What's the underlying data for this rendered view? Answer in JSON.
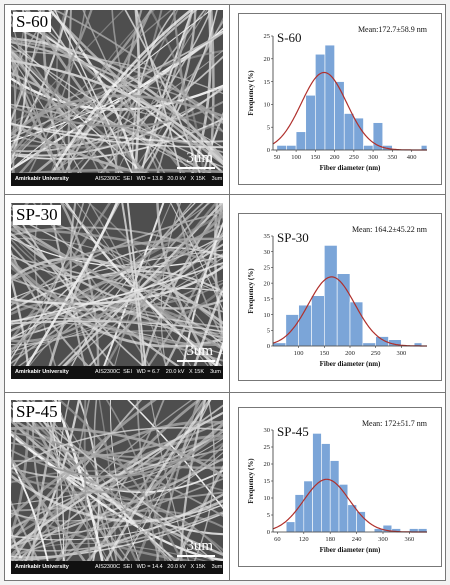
{
  "panels": [
    {
      "sem": {
        "label": "S-60",
        "institution": "Amirkabir University",
        "params": "AIS2300C  SEI   WD = 13.8   20.0 kV   X 15K    3um",
        "scale_bar": "3um"
      }
    },
    {
      "sem": {
        "label": "SP-30",
        "institution": "Amirkabir University",
        "params": "AIS2300C  SEI   WD = 6.7    20.0 kV   X 15K    3um",
        "scale_bar": "3um"
      }
    },
    {
      "sem": {
        "label": "SP-45",
        "institution": "Amirkabir University",
        "params": "AIS2300C  SEI   WD = 14.4   20.0 kV   X 15K    3um",
        "scale_bar": "3um"
      }
    }
  ],
  "chart_data": [
    {
      "type": "bar",
      "panel_label": "S-60",
      "mean_text": "Mean:172.7±58.9 nm",
      "xlabel": "Fiber diameter (nm)",
      "ylabel": "Frequency (%)",
      "xlim": [
        40,
        440
      ],
      "ylim": [
        0,
        25
      ],
      "x_ticks": [
        50,
        100,
        150,
        200,
        250,
        300,
        350,
        400
      ],
      "y_ticks": [
        0,
        5,
        10,
        15,
        20,
        25
      ],
      "bin_edges": [
        50,
        75,
        100,
        125,
        150,
        175,
        200,
        225,
        250,
        275,
        300,
        325,
        350,
        375,
        400,
        425,
        440
      ],
      "values": [
        1,
        1,
        4,
        12,
        21,
        23,
        15,
        8,
        7,
        1,
        6,
        1,
        0,
        0,
        0,
        1
      ],
      "fit": {
        "mean": 172.7,
        "sd": 58.9,
        "peak": 17
      },
      "colors": {
        "bars": "#7ba5d8",
        "fit": "#b0302c"
      }
    },
    {
      "type": "bar",
      "panel_label": "SP-30",
      "mean_text": "Mean: 164.2±45.22 nm",
      "xlabel": "Fiber diameter (nm)",
      "ylabel": "Frequency (%)",
      "xlim": [
        50,
        350
      ],
      "ylim": [
        0,
        35
      ],
      "x_ticks": [
        100,
        150,
        200,
        250,
        300
      ],
      "y_ticks": [
        0,
        5,
        10,
        15,
        20,
        25,
        30,
        35
      ],
      "bin_edges": [
        50,
        75,
        100,
        125,
        150,
        175,
        200,
        225,
        250,
        275,
        300,
        325,
        340
      ],
      "values": [
        1,
        10,
        13,
        16,
        32,
        23,
        14,
        1,
        3,
        2,
        0,
        1
      ],
      "fit": {
        "mean": 164.2,
        "sd": 45.22,
        "peak": 22
      },
      "colors": {
        "bars": "#7ba5d8",
        "fit": "#b0302c"
      }
    },
    {
      "type": "bar",
      "panel_label": "SP-45",
      "mean_text": "Mean: 172±51.7 nm",
      "xlabel": "Fiber diameter (nm)",
      "ylabel": "Frequency (%)",
      "xlim": [
        50,
        400
      ],
      "ylim": [
        0,
        30
      ],
      "x_ticks": [
        60,
        120,
        180,
        240,
        300,
        360
      ],
      "y_ticks": [
        0,
        5,
        10,
        15,
        20,
        25,
        30
      ],
      "bin_edges": [
        60,
        80,
        100,
        120,
        140,
        160,
        180,
        200,
        220,
        240,
        260,
        280,
        300,
        320,
        340,
        360,
        380,
        400
      ],
      "values": [
        0,
        3,
        11,
        15,
        29,
        26,
        21,
        14,
        8,
        6,
        0,
        1,
        2,
        1,
        0,
        1,
        1
      ],
      "fit": {
        "mean": 172,
        "sd": 51.7,
        "peak": 15.5
      },
      "colors": {
        "bars": "#7ba5d8",
        "fit": "#b0302c"
      }
    }
  ]
}
